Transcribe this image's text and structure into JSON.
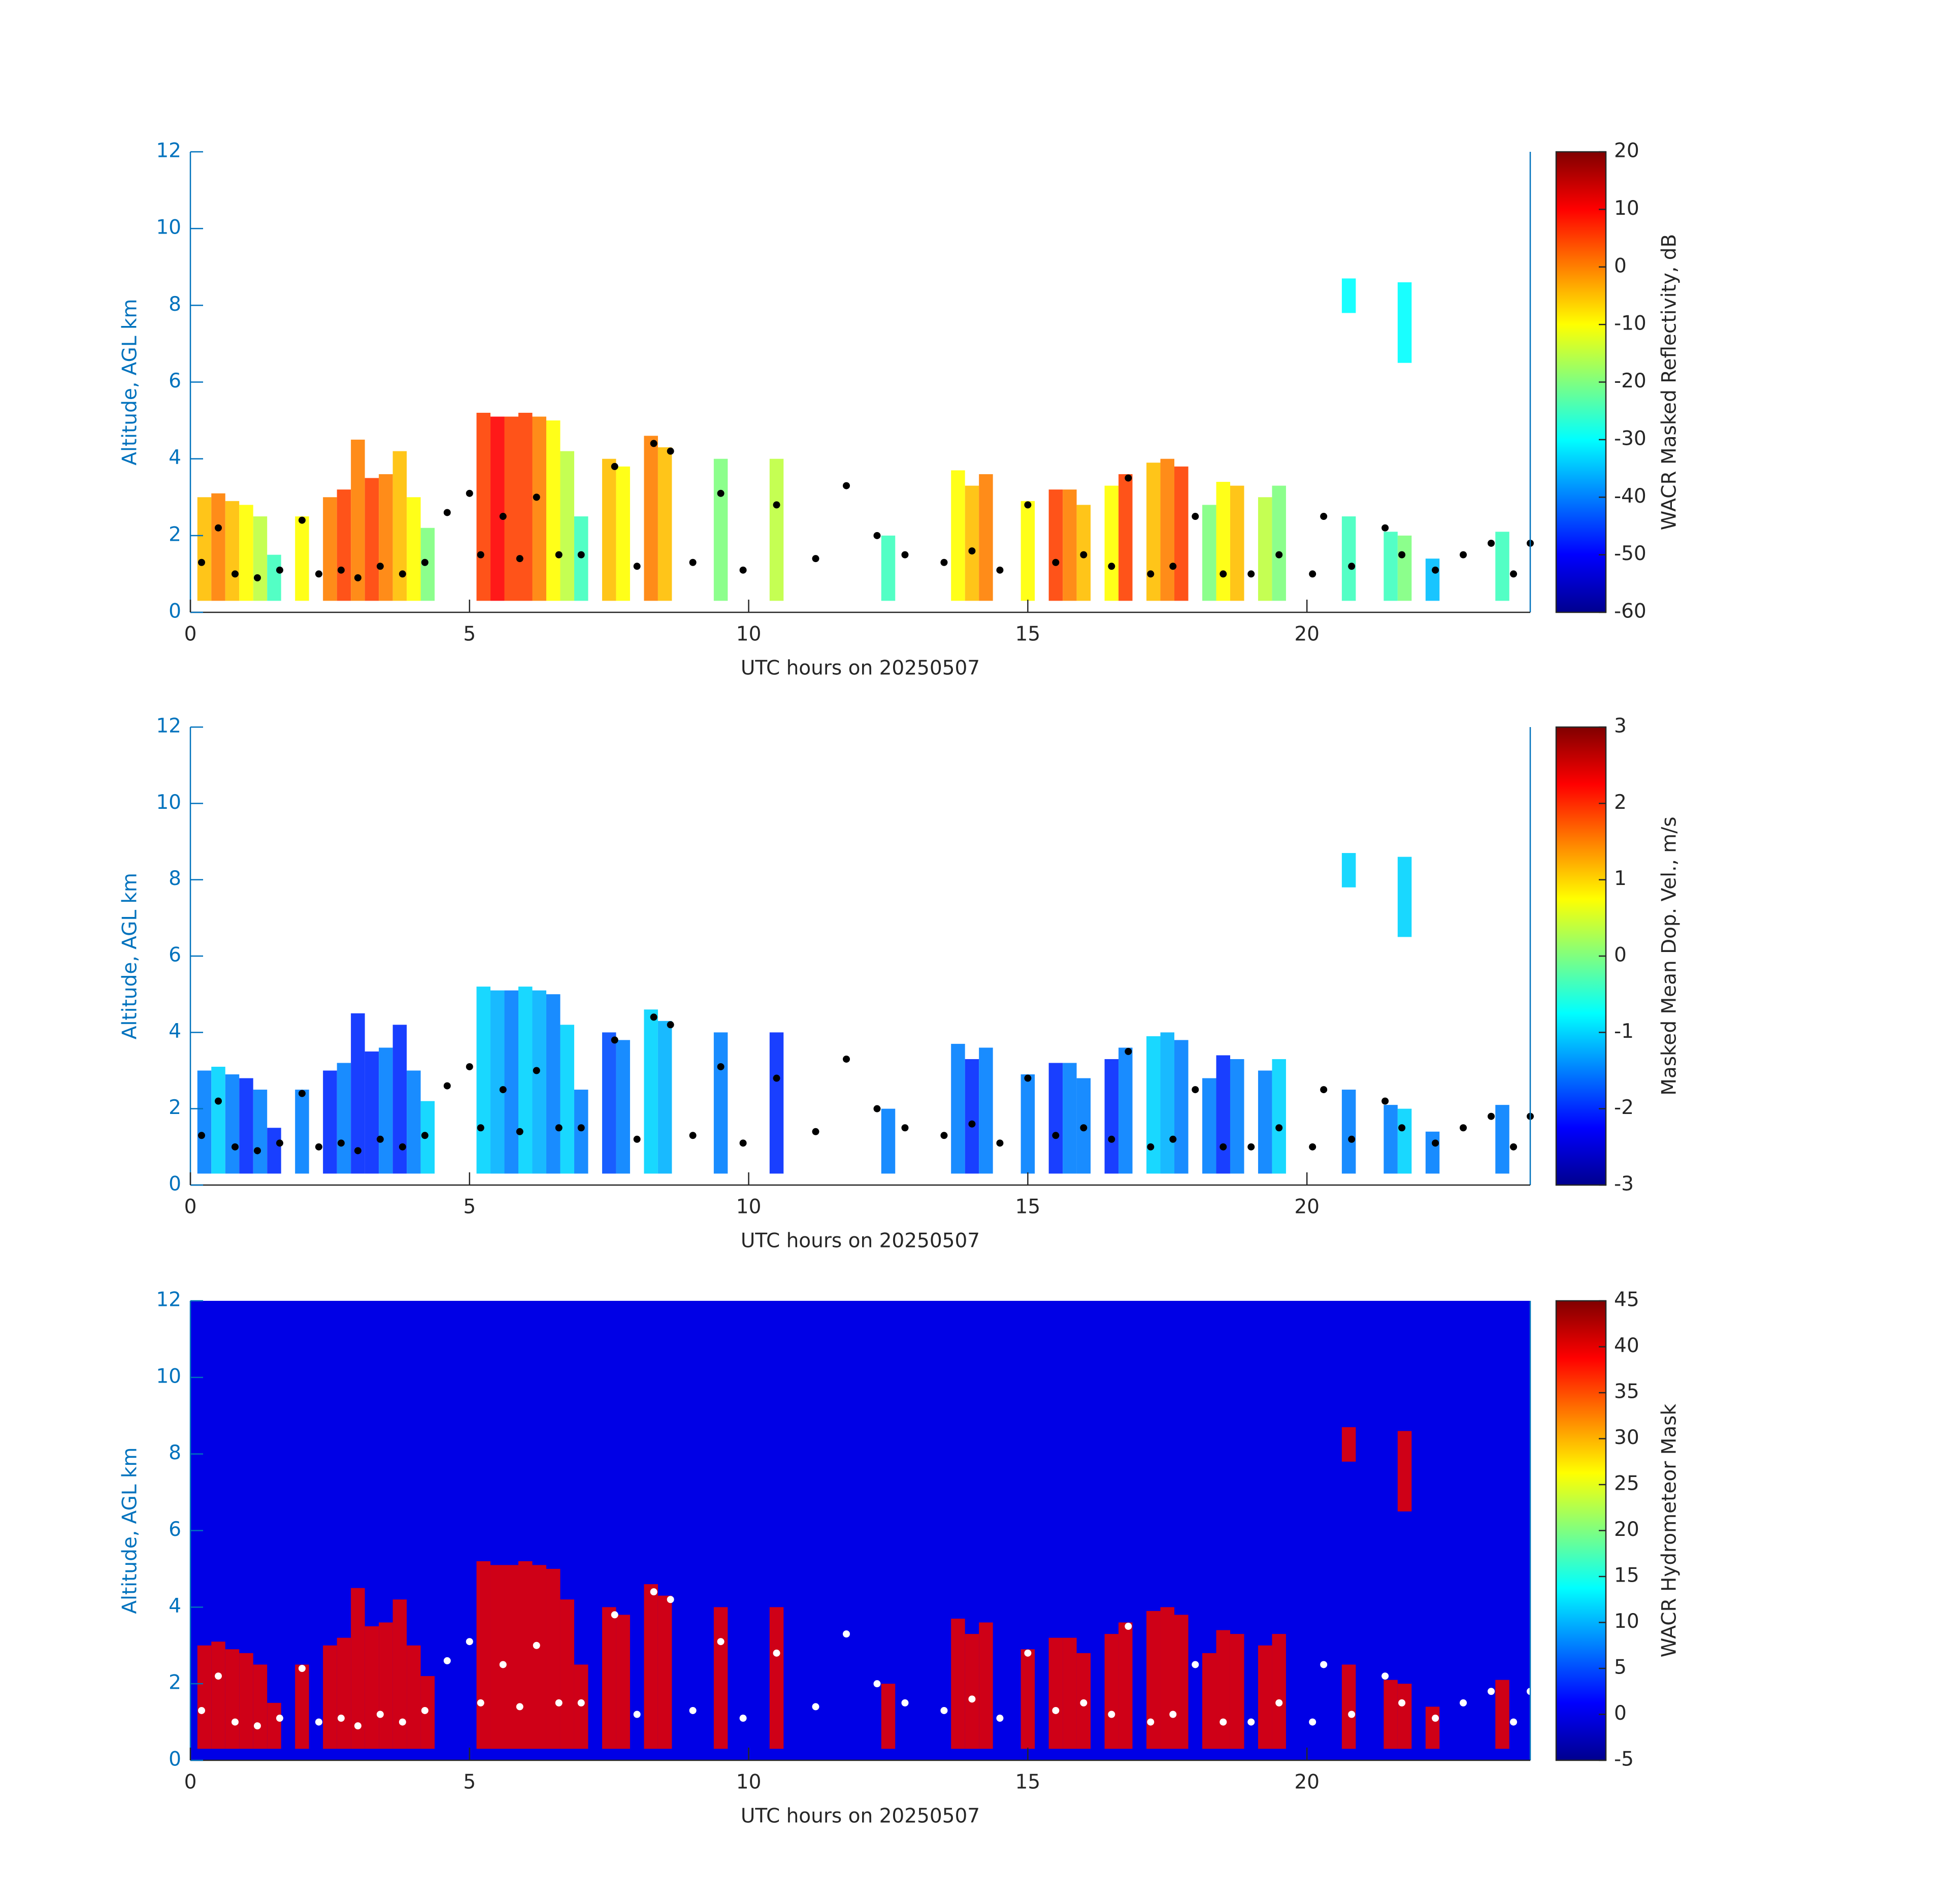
{
  "chart_data": [
    {
      "type": "heatmap",
      "xlabel": "UTC hours on 20250507",
      "ylabel": "Altitude, AGL km",
      "colorbar_label": "WACR Masked Reflectivity, dB",
      "xlim": [
        0,
        24
      ],
      "ylim": [
        0,
        12
      ],
      "xticks": [
        0,
        5,
        10,
        15,
        20
      ],
      "yticks": [
        0,
        2,
        4,
        6,
        8,
        10,
        12
      ],
      "clim": [
        -60,
        20
      ],
      "cticks": [
        -60,
        -50,
        -40,
        -30,
        -20,
        -10,
        0,
        10,
        20
      ],
      "dot_color": "#000000",
      "x": [
        0.25,
        0.5,
        0.75,
        1.0,
        1.25,
        1.5,
        2.0,
        2.5,
        2.75,
        3.0,
        3.25,
        3.5,
        3.75,
        4.0,
        4.25,
        5.25,
        5.5,
        5.75,
        6.0,
        6.25,
        6.5,
        6.75,
        7.0,
        7.5,
        7.75,
        8.25,
        8.5,
        9.5,
        10.5,
        12.5,
        13.75,
        14.0,
        14.25,
        15.0,
        15.5,
        15.75,
        16.0,
        16.5,
        16.75,
        17.25,
        17.5,
        17.75,
        18.25,
        18.5,
        18.75,
        19.25,
        19.5,
        20.75,
        20.75,
        21.5,
        21.75,
        21.75,
        22.25,
        23.5
      ],
      "tops": [
        3.0,
        3.1,
        2.9,
        2.8,
        2.5,
        1.5,
        2.5,
        3.0,
        3.2,
        4.5,
        3.5,
        3.6,
        4.2,
        3.0,
        2.2,
        5.2,
        5.1,
        5.1,
        5.2,
        5.1,
        5.0,
        4.2,
        2.5,
        4.0,
        3.8,
        4.6,
        4.3,
        4.0,
        4.0,
        2.0,
        3.7,
        3.3,
        3.6,
        2.9,
        3.2,
        3.2,
        2.8,
        3.3,
        3.6,
        3.9,
        4.0,
        3.8,
        2.8,
        3.4,
        3.3,
        3.0,
        3.3,
        2.5,
        8.7,
        2.1,
        2.0,
        8.6,
        1.4,
        2.1
      ],
      "bottoms": [
        0.3,
        0.3,
        0.3,
        0.3,
        0.3,
        0.3,
        0.3,
        0.3,
        0.3,
        0.3,
        0.3,
        0.3,
        0.3,
        0.3,
        0.3,
        0.3,
        0.3,
        0.3,
        0.3,
        0.3,
        0.3,
        0.3,
        0.3,
        0.3,
        0.3,
        0.3,
        0.3,
        0.3,
        0.3,
        0.3,
        0.3,
        0.3,
        0.3,
        0.3,
        0.3,
        0.3,
        0.3,
        0.3,
        0.3,
        0.3,
        0.3,
        0.3,
        0.3,
        0.3,
        0.3,
        0.3,
        0.3,
        0.3,
        7.8,
        0.3,
        0.3,
        6.5,
        0.3,
        0.3
      ],
      "z": [
        -5,
        0,
        -5,
        -10,
        -15,
        -25,
        -10,
        0,
        5,
        0,
        5,
        0,
        -5,
        -10,
        -20,
        5,
        10,
        5,
        5,
        0,
        -10,
        -15,
        -25,
        -5,
        -10,
        0,
        -5,
        -20,
        -15,
        -25,
        -10,
        -5,
        0,
        -10,
        5,
        0,
        -5,
        -10,
        5,
        -5,
        0,
        5,
        -20,
        -10,
        -5,
        -15,
        -20,
        -25,
        -30,
        -25,
        -20,
        -30,
        -35,
        -25
      ],
      "dots_x": [
        0.2,
        0.5,
        0.8,
        1.2,
        1.6,
        2.0,
        2.3,
        2.7,
        3.0,
        3.4,
        3.8,
        4.2,
        4.6,
        5.0,
        5.2,
        5.6,
        5.9,
        6.2,
        6.6,
        7.0,
        7.6,
        8.0,
        8.3,
        8.6,
        9.0,
        9.5,
        9.9,
        10.5,
        11.2,
        11.75,
        12.3,
        12.8,
        13.5,
        14.0,
        14.5,
        15.0,
        15.5,
        16.0,
        16.5,
        16.8,
        17.2,
        17.6,
        18.0,
        18.5,
        19.0,
        19.5,
        20.1,
        20.3,
        20.8,
        21.4,
        21.7,
        22.3,
        22.8,
        23.3,
        23.7,
        24.0
      ],
      "dots_y": [
        1.3,
        2.2,
        1.0,
        0.9,
        1.1,
        2.4,
        1.0,
        1.1,
        0.9,
        1.2,
        1.0,
        1.3,
        2.6,
        3.1,
        1.5,
        2.5,
        1.4,
        3.0,
        1.5,
        1.5,
        3.8,
        1.2,
        4.4,
        4.2,
        1.3,
        3.1,
        1.1,
        2.8,
        1.4,
        3.3,
        2.0,
        1.5,
        1.3,
        1.6,
        1.1,
        2.8,
        1.3,
        1.5,
        1.2,
        3.5,
        1.0,
        1.2,
        2.5,
        1.0,
        1.0,
        1.5,
        1.0,
        2.5,
        1.2,
        2.2,
        1.5,
        1.1,
        1.5,
        1.8,
        1.0,
        1.8
      ]
    },
    {
      "type": "heatmap",
      "xlabel": "UTC hours on 20250507",
      "ylabel": "Altitude, AGL km",
      "colorbar_label": "Masked Mean Dop. Vel., m/s",
      "xlim": [
        0,
        24
      ],
      "ylim": [
        0,
        12
      ],
      "xticks": [
        0,
        5,
        10,
        15,
        20
      ],
      "yticks": [
        0,
        2,
        4,
        6,
        8,
        10,
        12
      ],
      "clim": [
        -3,
        3
      ],
      "cticks": [
        -3,
        -2,
        -1,
        0,
        1,
        2,
        3
      ],
      "dot_color": "#000000",
      "x": [
        0.25,
        0.5,
        0.75,
        1.0,
        1.25,
        1.5,
        2.0,
        2.5,
        2.75,
        3.0,
        3.25,
        3.5,
        3.75,
        4.0,
        4.25,
        5.25,
        5.5,
        5.75,
        6.0,
        6.25,
        6.5,
        6.75,
        7.0,
        7.5,
        7.75,
        8.25,
        8.5,
        9.5,
        10.5,
        12.5,
        13.75,
        14.0,
        14.25,
        15.0,
        15.5,
        15.75,
        16.0,
        16.5,
        16.75,
        17.25,
        17.5,
        17.75,
        18.25,
        18.5,
        18.75,
        19.25,
        19.5,
        20.75,
        20.75,
        21.5,
        21.75,
        21.75,
        22.25,
        23.5
      ],
      "tops": [
        3.0,
        3.1,
        2.9,
        2.8,
        2.5,
        1.5,
        2.5,
        3.0,
        3.2,
        4.5,
        3.5,
        3.6,
        4.2,
        3.0,
        2.2,
        5.2,
        5.1,
        5.1,
        5.2,
        5.1,
        5.0,
        4.2,
        2.5,
        4.0,
        3.8,
        4.6,
        4.3,
        4.0,
        4.0,
        2.0,
        3.7,
        3.3,
        3.6,
        2.9,
        3.2,
        3.2,
        2.8,
        3.3,
        3.6,
        3.9,
        4.0,
        3.8,
        2.8,
        3.4,
        3.3,
        3.0,
        3.3,
        2.5,
        8.7,
        2.1,
        2.0,
        8.6,
        1.4,
        2.1
      ],
      "bottoms": [
        0.3,
        0.3,
        0.3,
        0.3,
        0.3,
        0.3,
        0.3,
        0.3,
        0.3,
        0.3,
        0.3,
        0.3,
        0.3,
        0.3,
        0.3,
        0.3,
        0.3,
        0.3,
        0.3,
        0.3,
        0.3,
        0.3,
        0.3,
        0.3,
        0.3,
        0.3,
        0.3,
        0.3,
        0.3,
        0.3,
        0.3,
        0.3,
        0.3,
        0.3,
        0.3,
        0.3,
        0.3,
        0.3,
        0.3,
        0.3,
        0.3,
        0.3,
        0.3,
        0.3,
        0.3,
        0.3,
        0.3,
        0.3,
        7.8,
        0.3,
        0.3,
        6.5,
        0.3,
        0.3
      ],
      "z": [
        -1.5,
        -1,
        -1.5,
        -2,
        -1.5,
        -2,
        -1.5,
        -2,
        -1.5,
        -2,
        -2,
        -1.5,
        -2,
        -1.5,
        -1,
        -1,
        -1.2,
        -1.5,
        -1,
        -1.2,
        -1.5,
        -1,
        -1.5,
        -1.8,
        -1.5,
        -1,
        -1.2,
        -1.5,
        -2,
        -1.5,
        -1.5,
        -2,
        -1.5,
        -1.5,
        -2,
        -1.5,
        -1.5,
        -2,
        -1.5,
        -1,
        -1.2,
        -1.5,
        -1.5,
        -2,
        -1.5,
        -1.5,
        -1,
        -1.5,
        -1,
        -1.5,
        -1,
        -1,
        -1.5,
        -1.5
      ],
      "dots_x": [
        0.2,
        0.5,
        0.8,
        1.2,
        1.6,
        2.0,
        2.3,
        2.7,
        3.0,
        3.4,
        3.8,
        4.2,
        4.6,
        5.0,
        5.2,
        5.6,
        5.9,
        6.2,
        6.6,
        7.0,
        7.6,
        8.0,
        8.3,
        8.6,
        9.0,
        9.5,
        9.9,
        10.5,
        11.2,
        11.75,
        12.3,
        12.8,
        13.5,
        14.0,
        14.5,
        15.0,
        15.5,
        16.0,
        16.5,
        16.8,
        17.2,
        17.6,
        18.0,
        18.5,
        19.0,
        19.5,
        20.1,
        20.3,
        20.8,
        21.4,
        21.7,
        22.3,
        22.8,
        23.3,
        23.7,
        24.0
      ],
      "dots_y": [
        1.3,
        2.2,
        1.0,
        0.9,
        1.1,
        2.4,
        1.0,
        1.1,
        0.9,
        1.2,
        1.0,
        1.3,
        2.6,
        3.1,
        1.5,
        2.5,
        1.4,
        3.0,
        1.5,
        1.5,
        3.8,
        1.2,
        4.4,
        4.2,
        1.3,
        3.1,
        1.1,
        2.8,
        1.4,
        3.3,
        2.0,
        1.5,
        1.3,
        1.6,
        1.1,
        2.8,
        1.3,
        1.5,
        1.2,
        3.5,
        1.0,
        1.2,
        2.5,
        1.0,
        1.0,
        1.5,
        1.0,
        2.5,
        1.2,
        2.2,
        1.5,
        1.1,
        1.5,
        1.8,
        1.0,
        1.8
      ]
    },
    {
      "type": "heatmap",
      "xlabel": "UTC hours on 20250507",
      "ylabel": "Altitude, AGL km",
      "colorbar_label": "WACR Hydrometeor Mask",
      "xlim": [
        0,
        24
      ],
      "ylim": [
        0,
        12
      ],
      "xticks": [
        0,
        5,
        10,
        15,
        20
      ],
      "yticks": [
        0,
        2,
        4,
        6,
        8,
        10,
        12
      ],
      "clim": [
        -5,
        45
      ],
      "cticks": [
        -5,
        0,
        5,
        10,
        15,
        20,
        25,
        30,
        35,
        40,
        45
      ],
      "dot_color": "#ffffff",
      "background_value": 0,
      "x": [
        0.25,
        0.5,
        0.75,
        1.0,
        1.25,
        1.5,
        2.0,
        2.5,
        2.75,
        3.0,
        3.25,
        3.5,
        3.75,
        4.0,
        4.25,
        5.25,
        5.5,
        5.75,
        6.0,
        6.25,
        6.5,
        6.75,
        7.0,
        7.5,
        7.75,
        8.25,
        8.5,
        9.5,
        10.5,
        12.5,
        13.75,
        14.0,
        14.25,
        15.0,
        15.5,
        15.75,
        16.0,
        16.5,
        16.75,
        17.25,
        17.5,
        17.75,
        18.25,
        18.5,
        18.75,
        19.25,
        19.5,
        20.75,
        20.75,
        21.5,
        21.75,
        21.75,
        22.25,
        23.5
      ],
      "tops": [
        3.0,
        3.1,
        2.9,
        2.8,
        2.5,
        1.5,
        2.5,
        3.0,
        3.2,
        4.5,
        3.5,
        3.6,
        4.2,
        3.0,
        2.2,
        5.2,
        5.1,
        5.1,
        5.2,
        5.1,
        5.0,
        4.2,
        2.5,
        4.0,
        3.8,
        4.6,
        4.3,
        4.0,
        4.0,
        2.0,
        3.7,
        3.3,
        3.6,
        2.9,
        3.2,
        3.2,
        2.8,
        3.3,
        3.6,
        3.9,
        4.0,
        3.8,
        2.8,
        3.4,
        3.3,
        3.0,
        3.3,
        2.5,
        8.7,
        2.1,
        2.0,
        8.6,
        1.4,
        2.1
      ],
      "bottoms": [
        0.3,
        0.3,
        0.3,
        0.3,
        0.3,
        0.3,
        0.3,
        0.3,
        0.3,
        0.3,
        0.3,
        0.3,
        0.3,
        0.3,
        0.3,
        0.3,
        0.3,
        0.3,
        0.3,
        0.3,
        0.3,
        0.3,
        0.3,
        0.3,
        0.3,
        0.3,
        0.3,
        0.3,
        0.3,
        0.3,
        0.3,
        0.3,
        0.3,
        0.3,
        0.3,
        0.3,
        0.3,
        0.3,
        0.3,
        0.3,
        0.3,
        0.3,
        0.3,
        0.3,
        0.3,
        0.3,
        0.3,
        0.3,
        7.8,
        0.3,
        0.3,
        6.5,
        0.3,
        0.3
      ],
      "z": [
        40,
        40,
        40,
        40,
        40,
        40,
        40,
        40,
        40,
        40,
        40,
        40,
        40,
        40,
        40,
        40,
        40,
        40,
        40,
        40,
        40,
        40,
        40,
        40,
        40,
        40,
        40,
        40,
        40,
        40,
        40,
        40,
        40,
        40,
        40,
        40,
        40,
        40,
        40,
        40,
        40,
        40,
        40,
        40,
        40,
        40,
        40,
        40,
        40,
        40,
        40,
        40,
        40,
        40
      ],
      "dots_x": [
        0.2,
        0.5,
        0.8,
        1.2,
        1.6,
        2.0,
        2.3,
        2.7,
        3.0,
        3.4,
        3.8,
        4.2,
        4.6,
        5.0,
        5.2,
        5.6,
        5.9,
        6.2,
        6.6,
        7.0,
        7.6,
        8.0,
        8.3,
        8.6,
        9.0,
        9.5,
        9.9,
        10.5,
        11.2,
        11.75,
        12.3,
        12.8,
        13.5,
        14.0,
        14.5,
        15.0,
        15.5,
        16.0,
        16.5,
        16.8,
        17.2,
        17.6,
        18.0,
        18.5,
        19.0,
        19.5,
        20.1,
        20.3,
        20.8,
        21.4,
        21.7,
        22.3,
        22.8,
        23.3,
        23.7,
        24.0
      ],
      "dots_y": [
        1.3,
        2.2,
        1.0,
        0.9,
        1.1,
        2.4,
        1.0,
        1.1,
        0.9,
        1.2,
        1.0,
        1.3,
        2.6,
        3.1,
        1.5,
        2.5,
        1.4,
        3.0,
        1.5,
        1.5,
        3.8,
        1.2,
        4.4,
        4.2,
        1.3,
        3.1,
        1.1,
        2.8,
        1.4,
        3.3,
        2.0,
        1.5,
        1.3,
        1.6,
        1.1,
        2.8,
        1.3,
        1.5,
        1.2,
        3.5,
        1.0,
        1.2,
        2.5,
        1.0,
        1.0,
        1.5,
        1.0,
        2.5,
        1.2,
        2.2,
        1.5,
        1.1,
        1.5,
        1.8,
        1.0,
        1.8
      ]
    }
  ]
}
